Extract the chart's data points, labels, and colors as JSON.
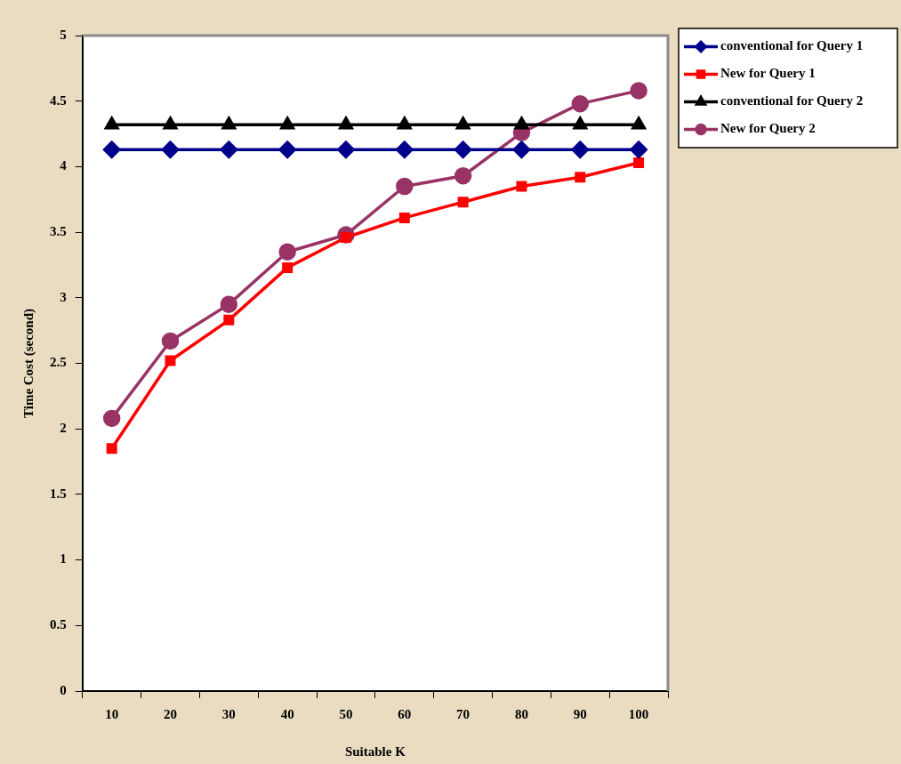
{
  "chart_data": {
    "type": "line",
    "xlabel": "Suitable K",
    "ylabel": "Time Cost (second)",
    "categories": [
      "10",
      "20",
      "30",
      "40",
      "50",
      "60",
      "70",
      "80",
      "90",
      "100"
    ],
    "ylim": [
      0,
      5
    ],
    "yticks": [
      0,
      0.5,
      1,
      1.5,
      2,
      2.5,
      3,
      3.5,
      4,
      4.5,
      5
    ],
    "grid": false,
    "legend": "top right",
    "series": [
      {
        "name": "conventional for Query 1",
        "color": "#00008b",
        "marker": "diamond",
        "values": [
          4.13,
          4.13,
          4.13,
          4.13,
          4.13,
          4.13,
          4.13,
          4.13,
          4.13,
          4.13
        ]
      },
      {
        "name": "New for Query 1",
        "color": "#ff0000",
        "marker": "square",
        "values": [
          1.85,
          2.52,
          2.83,
          3.23,
          3.46,
          3.61,
          3.73,
          3.85,
          3.92,
          4.03
        ]
      },
      {
        "name": "conventional for Query 2",
        "color": "#000000",
        "marker": "triangle",
        "values": [
          4.32,
          4.32,
          4.32,
          4.32,
          4.32,
          4.32,
          4.32,
          4.32,
          4.32,
          4.32
        ]
      },
      {
        "name": "New for Query 2",
        "color": "#993366",
        "marker": "circle",
        "values": [
          2.08,
          2.67,
          2.95,
          3.35,
          3.48,
          3.85,
          3.93,
          4.26,
          4.48,
          4.58
        ]
      }
    ]
  }
}
